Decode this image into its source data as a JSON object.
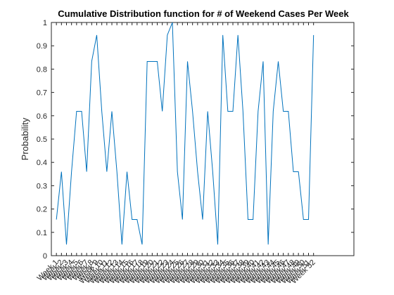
{
  "chart_data": {
    "type": "line",
    "title": "Cumulative Distribution function for # of Weekend Cases Per Week",
    "xlabel": "",
    "ylabel": "Probability",
    "ylim": [
      0,
      1
    ],
    "yticks": [
      "0",
      "0.1",
      "0.2",
      "0.3",
      "0.4",
      "0.5",
      "0.6",
      "0.7",
      "0.8",
      "0.9",
      "1"
    ],
    "xlim": [
      0,
      60
    ],
    "grid": false,
    "line_color": "#0072BD",
    "x": [
      "Week 1",
      "Week 2",
      "Week 3",
      "Week 4",
      "Week 5",
      "Week 6",
      "Week 7",
      "Week 8",
      "Week 9",
      "Week 10",
      "Week 11",
      "Week 12",
      "Week 13",
      "Week 14",
      "Week 15",
      "Week 16",
      "Week 17",
      "Week 18",
      "Week 19",
      "Week 20",
      "Week 21",
      "Week 22",
      "Week 23",
      "Week 24",
      "Week 25",
      "Week 26",
      "Week 27",
      "Week 28",
      "Week 29",
      "Week 30",
      "Week 31",
      "Week 32",
      "Week 33",
      "Week 34",
      "Week 35",
      "Week 36",
      "Week 37",
      "Week 38",
      "Week 39",
      "Week 40",
      "Week 41",
      "Week 42",
      "Week 43",
      "Week 44",
      "Week 45",
      "Week 46",
      "Week 47",
      "Week 48",
      "Week 49",
      "Week 50",
      "Week 51",
      "Week 52"
    ],
    "series": [
      {
        "values": [
          0.155,
          0.36,
          0.048,
          0.36,
          0.619,
          0.619,
          0.36,
          0.833,
          0.946,
          0.619,
          0.36,
          0.619,
          0.36,
          0.048,
          0.36,
          0.155,
          0.155,
          0.048,
          0.833,
          0.833,
          0.833,
          0.619,
          0.946,
          1.0,
          0.36,
          0.155,
          0.833,
          0.619,
          0.36,
          0.155,
          0.619,
          0.36,
          0.048,
          0.946,
          0.619,
          0.619,
          0.946,
          0.619,
          0.155,
          0.155,
          0.619,
          0.833,
          0.048,
          0.619,
          0.833,
          0.619,
          0.619,
          0.36,
          0.36,
          0.155,
          0.155,
          0.946
        ]
      }
    ]
  }
}
